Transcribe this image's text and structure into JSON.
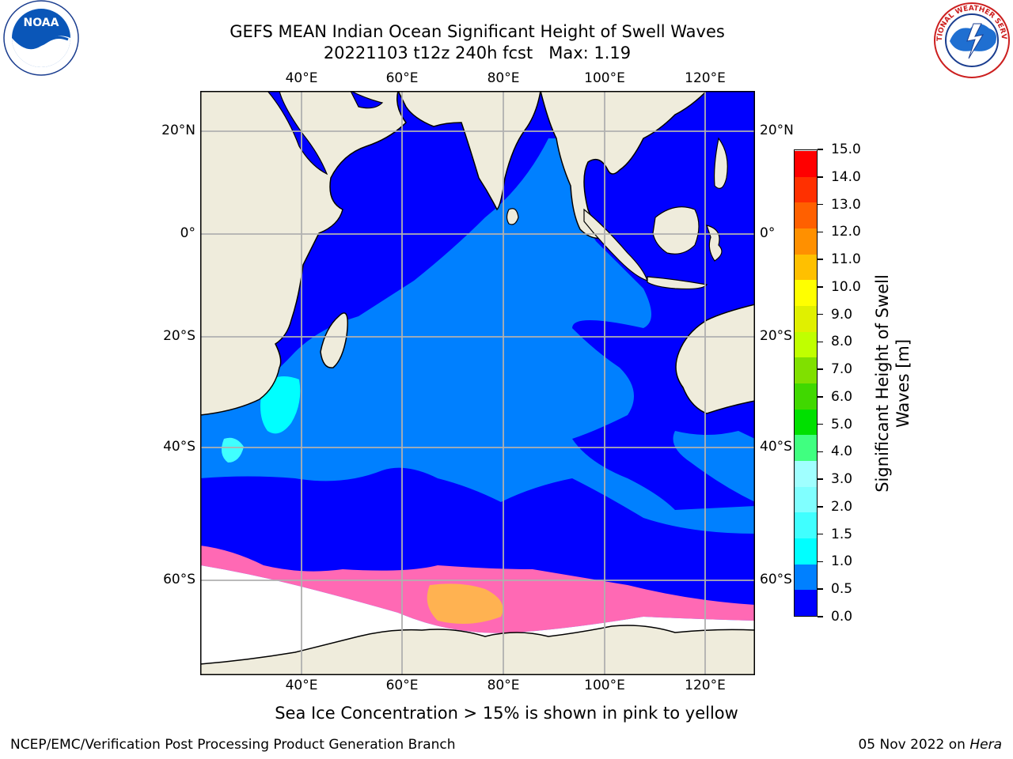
{
  "header": {
    "title_line1": "GEFS MEAN Indian Ocean Significant Height of Swell Waves",
    "title_line2": "20221103 t12z 240h fcst   Max: 1.19"
  },
  "logos": {
    "left": {
      "name": "noaa-logo",
      "text": "NOAA"
    },
    "right": {
      "name": "nws-logo",
      "text": "NATIONAL WEATHER SERVICE"
    }
  },
  "map": {
    "lon_ticks": [
      "40°E",
      "60°E",
      "80°E",
      "100°E",
      "120°E"
    ],
    "lat_ticks": [
      "20°N",
      "0°",
      "20°S",
      "40°S",
      "60°S"
    ],
    "colors": {
      "land": "#efecdc",
      "ocean_dark": "#0000ff",
      "ocean_light": "#0080ff",
      "swell_cyan": "#00ffff",
      "ice_pink": "#ff69b4",
      "ice_yellow": "#ffc040",
      "ice_white": "#ffffff",
      "grid": "#b0b0b0"
    }
  },
  "colorbar": {
    "label_line1": "Significant Height of Swell",
    "label_line2": "Waves [m]",
    "ticks": [
      "0.0",
      "0.5",
      "1.0",
      "1.5",
      "2.0",
      "3.0",
      "4.0",
      "5.0",
      "6.0",
      "7.0",
      "8.0",
      "9.0",
      "10.0",
      "11.0",
      "12.0",
      "13.0",
      "14.0",
      "15.0"
    ],
    "colors": [
      "#0000ff",
      "#0080ff",
      "#00ffff",
      "#40ffff",
      "#80ffff",
      "#a0ffff",
      "#40ff80",
      "#00e000",
      "#40d800",
      "#80e000",
      "#c0ff00",
      "#e0f000",
      "#ffff00",
      "#ffc000",
      "#ff9000",
      "#ff6000",
      "#ff3000",
      "#ff0000"
    ]
  },
  "caption": "Sea Ice Concentration > 15% is shown in pink to yellow",
  "footer": {
    "left": "NCEP/EMC/Verification Post Processing Product Generation Branch",
    "right_prefix": "05 Nov 2022 on ",
    "right_host": "Hera"
  }
}
